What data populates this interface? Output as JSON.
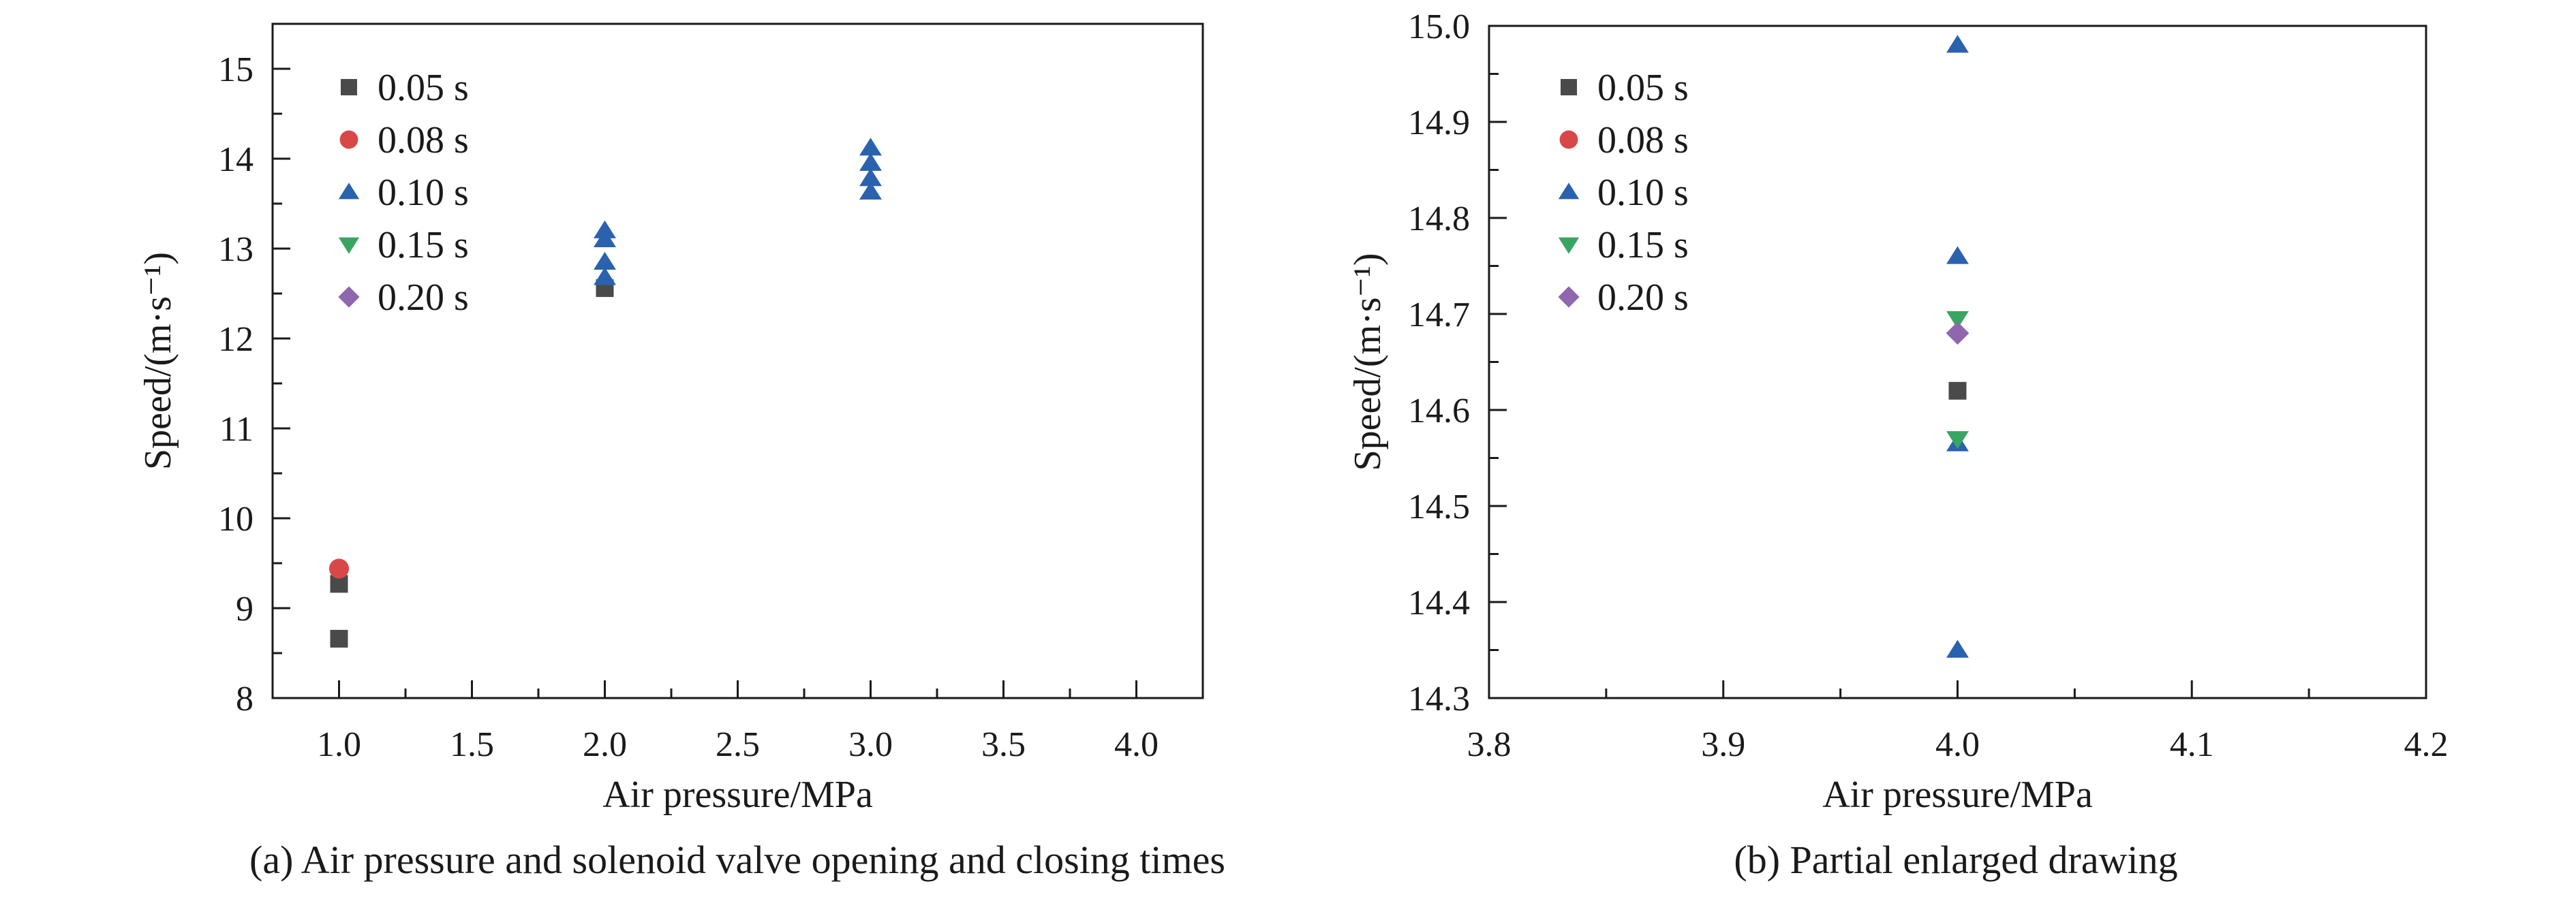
{
  "colors": {
    "s005": "#4a4a4a",
    "s008": "#d94848",
    "s010": "#2a62ae",
    "s015": "#39a562",
    "s020": "#8f67ad",
    "axis": "#1a1a1a"
  },
  "chart_data": [
    {
      "type": "scatter",
      "caption": "(a) Air pressure and solenoid valve opening and closing times",
      "xlabel": "Air pressure/MPa",
      "ylabel": "Speed/(m·s⁻¹)",
      "xlim": [
        0.75,
        4.25
      ],
      "ylim": [
        8,
        15.5
      ],
      "xticks": [
        "1.0",
        "1.5",
        "2.0",
        "2.5",
        "3.0",
        "3.5",
        "4.0"
      ],
      "yticks": [
        "8",
        "9",
        "10",
        "11",
        "12",
        "13",
        "14",
        "15"
      ],
      "grid": false,
      "legend_position": "top-left",
      "series": [
        {
          "name": "0.05 s",
          "marker": "square",
          "color_key": "s005",
          "points": [
            [
              1.0,
              8.66
            ],
            [
              1.0,
              9.27
            ],
            [
              2.0,
              12.56
            ]
          ]
        },
        {
          "name": "0.08 s",
          "marker": "circle",
          "color_key": "s008",
          "points": [
            [
              1.0,
              9.44
            ]
          ]
        },
        {
          "name": "0.10 s",
          "marker": "triangle-up",
          "color_key": "s010",
          "points": [
            [
              2.0,
              12.68
            ],
            [
              2.0,
              12.85
            ],
            [
              2.0,
              13.1
            ],
            [
              2.0,
              13.2
            ],
            [
              3.0,
              13.63
            ],
            [
              3.0,
              13.78
            ],
            [
              3.0,
              13.95
            ],
            [
              3.0,
              14.12
            ]
          ]
        },
        {
          "name": "0.15 s",
          "marker": "triangle-down",
          "color_key": "s015",
          "points": []
        },
        {
          "name": "0.20 s",
          "marker": "diamond",
          "color_key": "s020",
          "points": []
        }
      ]
    },
    {
      "type": "scatter",
      "caption": "(b) Partial enlarged drawing",
      "xlabel": "Air pressure/MPa",
      "ylabel": "Speed/(m·s⁻¹)",
      "xlim": [
        3.8,
        4.2
      ],
      "ylim": [
        14.3,
        15.0
      ],
      "xticks": [
        "3.8",
        "3.9",
        "4.0",
        "4.1",
        "4.2"
      ],
      "yticks": [
        "14.3",
        "14.4",
        "14.5",
        "14.6",
        "14.7",
        "14.8",
        "14.9",
        "15.0"
      ],
      "grid": false,
      "legend_position": "top-left",
      "series": [
        {
          "name": "0.05 s",
          "marker": "square",
          "color_key": "s005",
          "points": [
            [
              4.0,
              14.62
            ]
          ]
        },
        {
          "name": "0.08 s",
          "marker": "circle",
          "color_key": "s008",
          "points": []
        },
        {
          "name": "0.10 s",
          "marker": "triangle-up",
          "color_key": "s010",
          "points": [
            [
              4.0,
              14.35
            ],
            [
              4.0,
              14.565
            ],
            [
              4.0,
              14.76
            ],
            [
              4.0,
              14.98
            ]
          ]
        },
        {
          "name": "0.15 s",
          "marker": "triangle-down",
          "color_key": "s015",
          "points": [
            [
              4.0,
              14.57
            ],
            [
              4.0,
              14.695
            ]
          ]
        },
        {
          "name": "0.20 s",
          "marker": "diamond",
          "color_key": "s020",
          "points": [
            [
              4.0,
              14.68
            ]
          ]
        }
      ]
    }
  ]
}
